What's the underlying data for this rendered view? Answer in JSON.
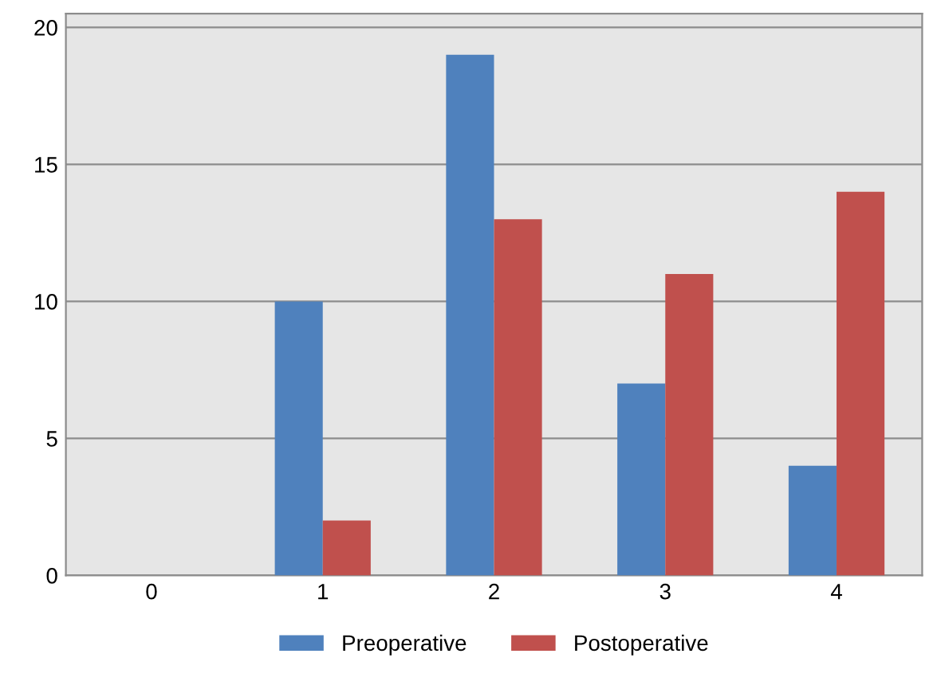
{
  "chart_data": {
    "type": "bar",
    "categories": [
      "0",
      "1",
      "2",
      "3",
      "4"
    ],
    "series": [
      {
        "name": "Preoperative",
        "color": "#4f81bd",
        "values": [
          0,
          10,
          19,
          7,
          4
        ]
      },
      {
        "name": "Postoperative",
        "color": "#c0504d",
        "values": [
          0,
          2,
          13,
          11,
          14
        ]
      }
    ],
    "ylim": [
      0,
      20.5
    ],
    "yticks": [
      0,
      5,
      10,
      15,
      20
    ],
    "grid": "y",
    "legend": "bottom"
  }
}
